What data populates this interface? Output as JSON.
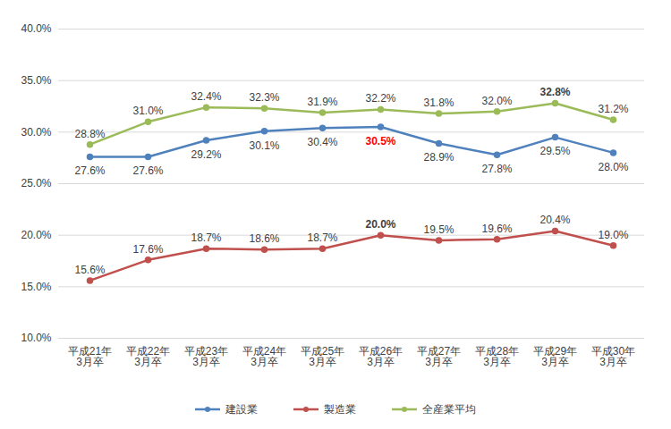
{
  "chart_data": {
    "type": "line",
    "categories": [
      "平成21年\n3月卒",
      "平成22年\n3月卒",
      "平成23年\n3月卒",
      "平成24年\n3月卒",
      "平成25年\n3月卒",
      "平成26年\n3月卒",
      "平成27年\n3月卒",
      "平成28年\n3月卒",
      "平成29年\n3月卒",
      "平成30年\n3月卒"
    ],
    "series": [
      {
        "name": "建設業",
        "color": "#4f81bd",
        "marker": "circle",
        "values": [
          27.6,
          27.6,
          29.2,
          30.1,
          30.4,
          30.5,
          28.9,
          27.8,
          29.5,
          28.0
        ],
        "value_labels": [
          "27.6%",
          "27.6%",
          "29.2%",
          "30.1%",
          "30.4%",
          "30.5%",
          "28.9%",
          "27.8%",
          "29.5%",
          "28.0%"
        ]
      },
      {
        "name": "製造業",
        "color": "#c0504d",
        "marker": "circle",
        "values": [
          15.6,
          17.6,
          18.7,
          18.6,
          18.7,
          20.0,
          19.5,
          19.6,
          20.4,
          19.0
        ],
        "value_labels": [
          "15.6%",
          "17.6%",
          "18.7%",
          "18.6%",
          "18.7%",
          "20.0%",
          "19.5%",
          "19.6%",
          "20.4%",
          "19.0%"
        ]
      },
      {
        "name": "全産業平均",
        "color": "#9bbb59",
        "marker": "circle",
        "values": [
          28.8,
          31.0,
          32.4,
          32.3,
          31.9,
          32.2,
          31.8,
          32.0,
          32.8,
          31.2
        ],
        "value_labels": [
          "28.8%",
          "31.0%",
          "32.4%",
          "32.3%",
          "31.9%",
          "32.2%",
          "31.8%",
          "32.0%",
          "32.8%",
          "31.2%"
        ]
      }
    ],
    "ylim": [
      10,
      40
    ],
    "yticks": [
      {
        "value": 10,
        "label": "10.0%"
      },
      {
        "value": 15,
        "label": "15.0%"
      },
      {
        "value": 20,
        "label": "20.0%"
      },
      {
        "value": 25,
        "label": "25.0%"
      },
      {
        "value": 30,
        "label": "30.0%"
      },
      {
        "value": 35,
        "label": "35.0%"
      },
      {
        "value": 40,
        "label": "40.0%"
      }
    ],
    "grid": true,
    "data_labels": true,
    "legend": "bottom"
  }
}
